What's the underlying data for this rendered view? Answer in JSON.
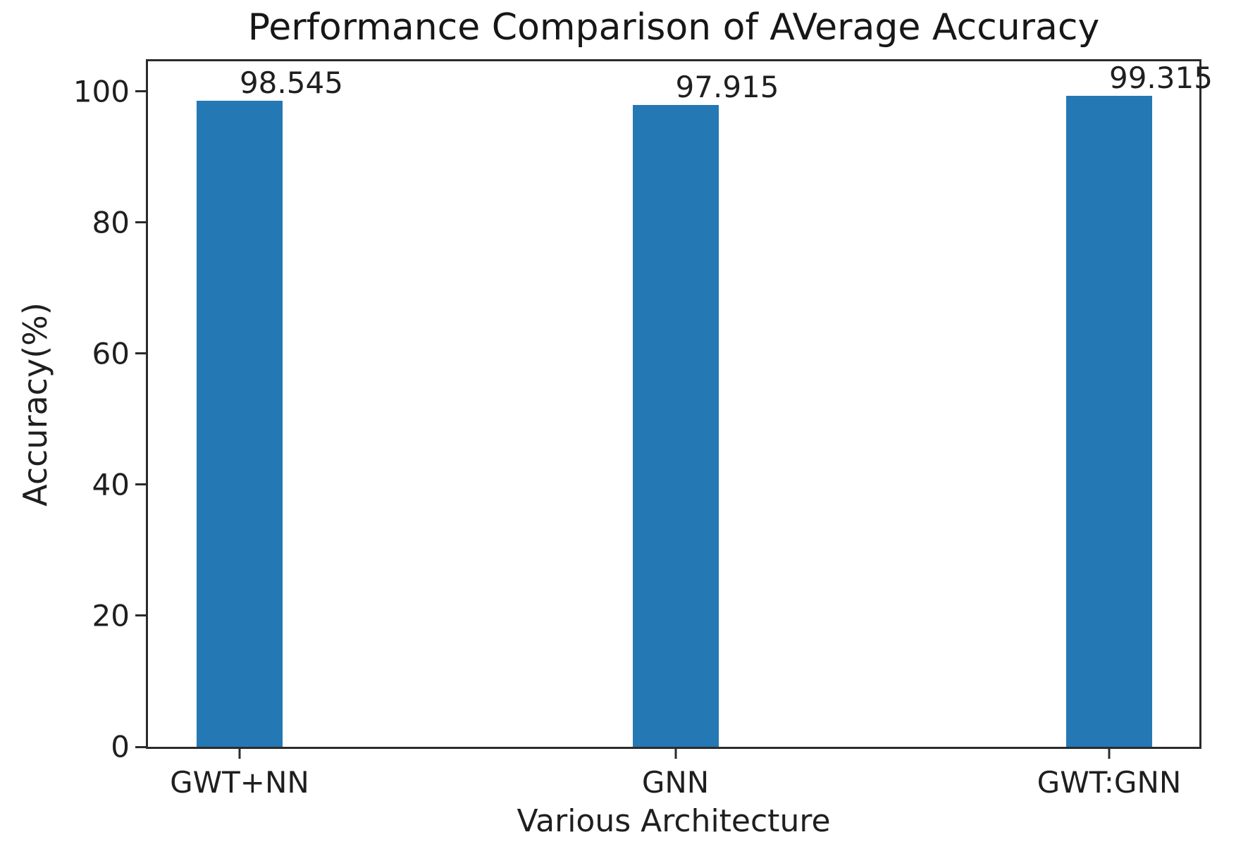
{
  "chart_data": {
    "type": "bar",
    "title": "Performance Comparison of AVerage Accuracy",
    "xlabel": "Various Architecture",
    "ylabel": "Accuracy(%)",
    "categories": [
      "GWT+NN",
      "GNN",
      "GWT:GNN"
    ],
    "values": [
      98.545,
      97.915,
      99.315
    ],
    "bar_labels": [
      "98.545",
      "97.915",
      "99.315"
    ],
    "yticks": [
      0,
      20,
      40,
      60,
      80,
      100
    ],
    "ytick_labels": [
      "0",
      "20",
      "40",
      "60",
      "80",
      "100"
    ],
    "ylim": [
      0,
      104.6
    ],
    "grid": false,
    "legend": false,
    "bar_color": "#2478b4",
    "spine_color": "#2b2b2b",
    "bar_center_fractions": [
      0.0871,
      0.5017,
      0.9142
    ],
    "value_label_alignment": "left-at-bar-center"
  }
}
